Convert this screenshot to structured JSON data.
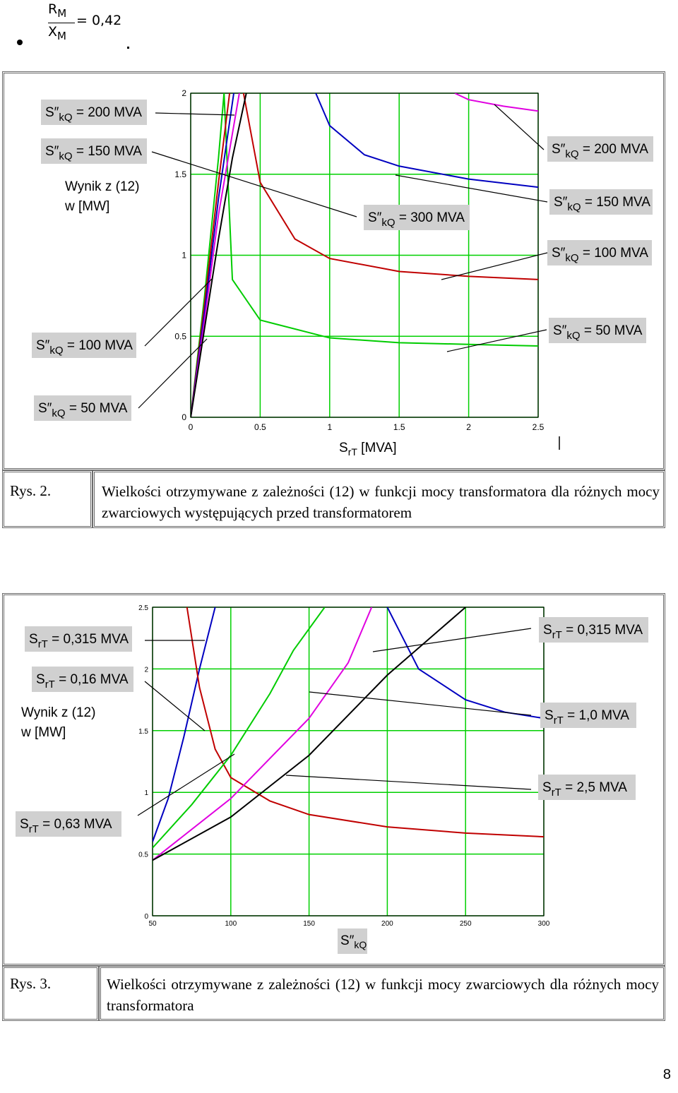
{
  "formula": {
    "num": "R",
    "num_sub": "M",
    "den": "X",
    "den_sub": "M",
    "eq": "= 0,42"
  },
  "figure2": {
    "caption_label": "Rys. 2.",
    "caption_text": "Wielkości otrzymywane z zależności (12) w funkcji mocy transformatora dla różnych mocy zwarciowych występujących przed transformatorem",
    "ylabel_line1": "Wynik z (12)",
    "ylabel_line2": "w [MW]",
    "xlabel": "S",
    "xlabel_sub": "rT",
    "xlabel_unit": "[MVA]",
    "labels_left": [
      {
        "main": "S″",
        "sub": "kQ",
        "value": "= 200 MVA"
      },
      {
        "main": "S″",
        "sub": "kQ",
        "value": "= 150 MVA"
      },
      {
        "main": "S″",
        "sub": "kQ",
        "value": "= 100 MVA"
      },
      {
        "main": "S″",
        "sub": "kQ",
        "value": "= 50 MVA"
      }
    ],
    "labels_right": [
      {
        "main": "S″",
        "sub": "kQ",
        "value": "= 200 MVA"
      },
      {
        "main": "S″",
        "sub": "kQ",
        "value": "= 150 MVA"
      },
      {
        "main": "S″",
        "sub": "kQ",
        "value": "= 100 MVA"
      },
      {
        "main": "S″",
        "sub": "kQ",
        "value": "= 50 MVA"
      }
    ],
    "label_center": {
      "main": "S″",
      "sub": "kQ",
      "value": "= 300 MVA"
    }
  },
  "figure3": {
    "caption_label": "Rys. 3.",
    "caption_text": "Wielkości otrzymywane z zależności (12) w funkcji mocy zwarciowych dla różnych mocy transformatora",
    "ylabel_line1": "Wynik z (12)",
    "ylabel_line2": "w [MW]",
    "xlabel": "S″",
    "xlabel_sub": "kQ",
    "labels_left": [
      {
        "main": "S",
        "sub": "rT",
        "value": "= 0,315 MVA"
      },
      {
        "main": "S",
        "sub": "rT",
        "value": "= 0,16 MVA"
      },
      {
        "main": "S",
        "sub": "rT",
        "value": "= 0,63 MVA"
      }
    ],
    "labels_right": [
      {
        "main": "S",
        "sub": "rT",
        "value": "= 0,315 MVA"
      },
      {
        "main": "S",
        "sub": "rT",
        "value": "= 1,0 MVA"
      },
      {
        "main": "S",
        "sub": "rT",
        "value": "= 2,5 MVA"
      }
    ]
  },
  "chart_data": [
    {
      "type": "line",
      "xlim": [
        0,
        2.5
      ],
      "ylim": [
        0,
        2
      ],
      "xticks": [
        "0",
        "0.5",
        "1",
        "1.5",
        "2",
        "2.5"
      ],
      "yticks": [
        "0",
        "0.5",
        "1",
        "1.5",
        "2"
      ],
      "grid": true,
      "colors": {
        "grid": "#00d000",
        "kQ300": "#e000e0",
        "kQ200": "#0000c0",
        "kQ150": "#c00000",
        "kQ100": "#00cc00",
        "kQ50": "#000000"
      },
      "series": [
        {
          "color": "#00cc00",
          "rising_x": [
            0,
            0.1,
            0.2,
            0.24
          ],
          "rising_y": [
            0,
            0.75,
            1.6,
            2.0
          ],
          "falling_x": [
            0.24,
            0.3,
            0.5,
            1.0,
            1.5,
            2.0,
            2.5
          ],
          "falling_y": [
            2.0,
            0.85,
            0.6,
            0.49,
            0.46,
            0.45,
            0.44
          ]
        },
        {
          "color": "#c00000",
          "rising_x": [
            0,
            0.1,
            0.2,
            0.28
          ],
          "rising_y": [
            0,
            0.7,
            1.45,
            2.0
          ],
          "falling_x": [
            0.38,
            0.5,
            0.75,
            1.0,
            1.5,
            2.0,
            2.5
          ],
          "falling_y": [
            2.0,
            1.45,
            1.1,
            0.98,
            0.9,
            0.87,
            0.85
          ]
        },
        {
          "color": "#0000c0",
          "rising_x": [
            0,
            0.1,
            0.2,
            0.31
          ],
          "rising_y": [
            0,
            0.65,
            1.35,
            2.0
          ],
          "falling_x": [
            0.9,
            1.0,
            1.25,
            1.5,
            2.0,
            2.5
          ],
          "falling_y": [
            2.0,
            1.8,
            1.62,
            1.55,
            1.47,
            1.42
          ]
        },
        {
          "color": "#e000e0",
          "rising_x": [
            0,
            0.1,
            0.2,
            0.35
          ],
          "rising_y": [
            0,
            0.6,
            1.25,
            2.0
          ],
          "falling_x": [
            1.9,
            2.0,
            2.25,
            2.5
          ],
          "falling_y": [
            2.0,
            1.96,
            1.92,
            1.89
          ]
        },
        {
          "color": "#000000",
          "rising_x": [
            0,
            0.1,
            0.2,
            0.3,
            0.4
          ],
          "rising_y": [
            0,
            0.55,
            1.1,
            1.6,
            2.0
          ],
          "falling_x": [],
          "falling_y": []
        }
      ]
    },
    {
      "type": "line",
      "xlim": [
        50,
        300
      ],
      "ylim": [
        0,
        2.5
      ],
      "xticks": [
        "50",
        "100",
        "150",
        "200",
        "250",
        "300"
      ],
      "yticks": [
        "0",
        "0.5",
        "1",
        "1.5",
        "2",
        "2.5"
      ],
      "grid": true,
      "colors": {
        "grid": "#00d000",
        "rT016": "#0000c0",
        "rT0315": "#c00000",
        "rT063": "#00cc00",
        "rT10": "#e000e0",
        "rT25": "#000000"
      },
      "series": [
        {
          "color": "#0000c0",
          "rising_x": [
            50,
            60,
            70,
            80,
            90
          ],
          "rising_y": [
            0.6,
            0.95,
            1.45,
            2.0,
            2.5
          ],
          "falling_x": [
            200,
            220,
            250,
            275,
            300
          ],
          "falling_y": [
            2.5,
            2.0,
            1.75,
            1.65,
            1.6
          ]
        },
        {
          "color": "#c00000",
          "rising_x": [],
          "rising_y": [],
          "falling_x": [
            72,
            80,
            90,
            100,
            125,
            150,
            200,
            250,
            300
          ],
          "falling_y": [
            2.5,
            1.85,
            1.35,
            1.12,
            0.93,
            0.82,
            0.72,
            0.67,
            0.64
          ]
        },
        {
          "color": "#00cc00",
          "rising_x": [
            50,
            75,
            100,
            125,
            140,
            160
          ],
          "rising_y": [
            0.55,
            0.9,
            1.3,
            1.8,
            2.15,
            2.5
          ],
          "falling_x": [],
          "falling_y": []
        },
        {
          "color": "#e000e0",
          "rising_x": [
            50,
            100,
            150,
            175,
            190
          ],
          "rising_y": [
            0.45,
            0.95,
            1.6,
            2.05,
            2.5
          ],
          "falling_x": [],
          "falling_y": []
        },
        {
          "color": "#000000",
          "rising_x": [
            50,
            100,
            150,
            200,
            250
          ],
          "rising_y": [
            0.45,
            0.8,
            1.3,
            1.95,
            2.5
          ],
          "falling_x": [],
          "falling_y": []
        }
      ]
    }
  ],
  "page_number": "8"
}
